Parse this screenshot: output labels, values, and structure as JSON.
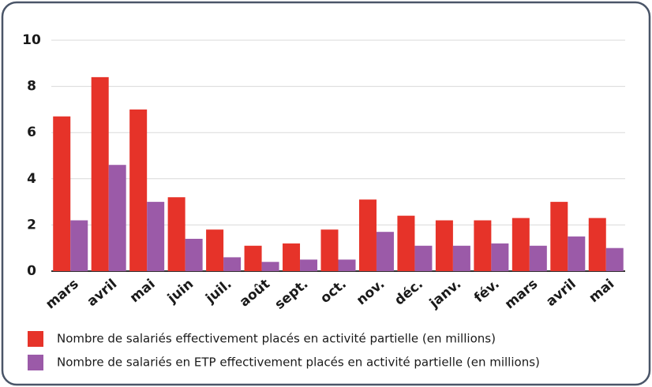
{
  "chart_data": {
    "type": "bar",
    "categories": [
      "mars",
      "avril",
      "mai",
      "juin",
      "juil.",
      "août",
      "sept.",
      "oct.",
      "nov.",
      "déc.",
      "janv.",
      "fév.",
      "mars",
      "avril",
      "mai"
    ],
    "series": [
      {
        "name": "Nombre de salariés effectivement placés en activité partielle (en millions)",
        "color": "#e63329",
        "values": [
          6.7,
          8.4,
          7.0,
          3.2,
          1.8,
          1.1,
          1.2,
          1.8,
          3.1,
          2.4,
          2.2,
          2.2,
          2.3,
          3.0,
          2.3
        ]
      },
      {
        "name": "Nombre de salariés en ETP effectivement placés en activité partielle (en millions)",
        "color": "#9b5aa8",
        "values": [
          2.2,
          4.6,
          3.0,
          1.4,
          0.6,
          0.4,
          0.5,
          0.5,
          1.7,
          1.1,
          1.1,
          1.2,
          1.1,
          1.5,
          1.0
        ]
      }
    ],
    "ylim": [
      0,
      10
    ],
    "yticks": [
      0,
      2,
      4,
      6,
      8,
      10
    ],
    "grid": true
  }
}
